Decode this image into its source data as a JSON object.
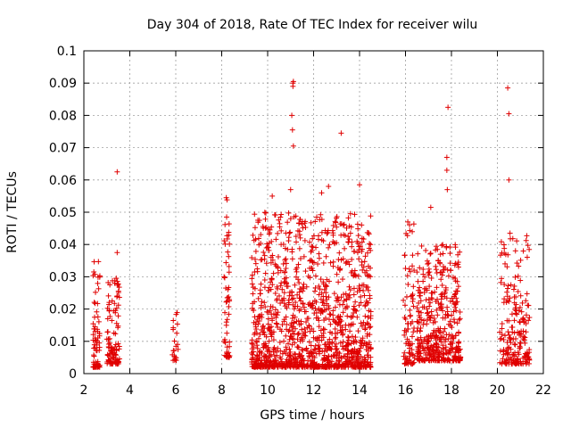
{
  "chart_data": {
    "type": "scatter",
    "title": "Day 304 of 2018, Rate Of TEC Index for receiver wilu",
    "xlabel": "GPS time / hours",
    "ylabel": "ROTI / TECUs",
    "xlim": [
      2,
      22
    ],
    "ylim": [
      0,
      0.1
    ],
    "x_ticks": [
      2,
      4,
      6,
      8,
      10,
      12,
      14,
      16,
      18,
      20,
      22
    ],
    "y_ticks": [
      0,
      0.01,
      0.02,
      0.03,
      0.04,
      0.05,
      0.06,
      0.07,
      0.08,
      0.09,
      0.1
    ],
    "x_tick_labels": [
      "2",
      "4",
      "6",
      "8",
      "10",
      "12",
      "14",
      "16",
      "18",
      "20",
      "22"
    ],
    "y_tick_labels": [
      "0",
      "0.01",
      "0.02",
      "0.03",
      "0.04",
      "0.05",
      "0.06",
      "0.07",
      "0.08",
      "0.09",
      "0.1"
    ],
    "grid": true,
    "legend": "none",
    "marker": "plus",
    "color": "#e00000",
    "clusters": [
      {
        "x_range": [
          2.4,
          2.7
        ],
        "y_range": [
          0.002,
          0.036
        ],
        "count": 70
      },
      {
        "x_range": [
          3.0,
          3.55
        ],
        "y_range": [
          0.003,
          0.03
        ],
        "count": 110
      },
      {
        "x_range": [
          5.85,
          6.1
        ],
        "y_range": [
          0.004,
          0.019
        ],
        "count": 22
      },
      {
        "x_range": [
          8.1,
          8.35
        ],
        "y_range": [
          0.005,
          0.054
        ],
        "count": 55
      },
      {
        "x_range": [
          9.3,
          14.5
        ],
        "y_range": [
          0.002,
          0.05
        ],
        "count": 1300
      },
      {
        "x_range": [
          15.9,
          16.4
        ],
        "y_range": [
          0.003,
          0.047
        ],
        "count": 80
      },
      {
        "x_range": [
          16.5,
          18.4
        ],
        "y_range": [
          0.004,
          0.04
        ],
        "count": 420
      },
      {
        "x_range": [
          20.1,
          21.4
        ],
        "y_range": [
          0.003,
          0.043
        ],
        "count": 200
      }
    ],
    "outliers": [
      {
        "x": 3.45,
        "y": 0.0625
      },
      {
        "x": 3.45,
        "y": 0.0375
      },
      {
        "x": 11.1,
        "y": 0.09
      },
      {
        "x": 11.12,
        "y": 0.0905
      },
      {
        "x": 11.1,
        "y": 0.089
      },
      {
        "x": 11.05,
        "y": 0.08
      },
      {
        "x": 11.08,
        "y": 0.0755
      },
      {
        "x": 11.12,
        "y": 0.0705
      },
      {
        "x": 11.0,
        "y": 0.057
      },
      {
        "x": 12.65,
        "y": 0.058
      },
      {
        "x": 12.35,
        "y": 0.056
      },
      {
        "x": 10.2,
        "y": 0.055
      },
      {
        "x": 13.2,
        "y": 0.0745
      },
      {
        "x": 14.0,
        "y": 0.0585
      },
      {
        "x": 13.3,
        "y": 0.043
      },
      {
        "x": 17.1,
        "y": 0.0515
      },
      {
        "x": 17.85,
        "y": 0.0825
      },
      {
        "x": 17.8,
        "y": 0.067
      },
      {
        "x": 17.8,
        "y": 0.063
      },
      {
        "x": 17.82,
        "y": 0.057
      },
      {
        "x": 20.45,
        "y": 0.0885
      },
      {
        "x": 20.5,
        "y": 0.0805
      },
      {
        "x": 20.5,
        "y": 0.06
      },
      {
        "x": 8.2,
        "y": 0.0545
      },
      {
        "x": 16.1,
        "y": 0.047
      },
      {
        "x": 20.55,
        "y": 0.0435
      }
    ]
  }
}
